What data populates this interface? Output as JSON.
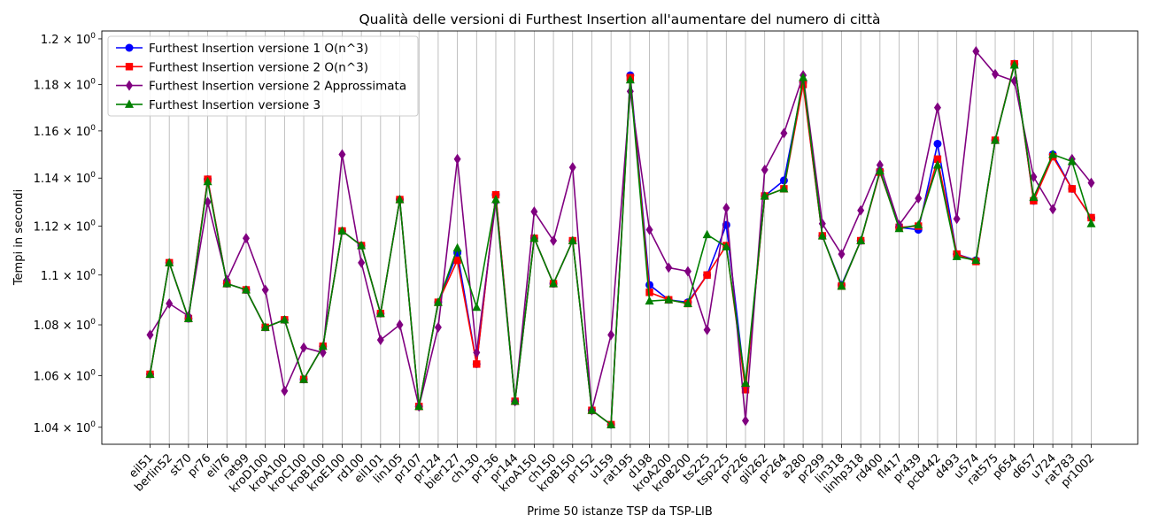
{
  "chart_data": {
    "type": "line",
    "title": "Qualità delle versioni di Furthest Insertion all'aumentare del numero di città",
    "xlabel": "Prime 50 istanze TSP da TSP-LIB",
    "ylabel": "Tempi in secondi",
    "yscale": "log",
    "ylim": [
      1.0335,
      1.2035
    ],
    "yticks": [
      1.04,
      1.06,
      1.08,
      1.1,
      1.12,
      1.14,
      1.16,
      1.18,
      1.2
    ],
    "ytick_labels": [
      "1.04",
      "1.06",
      "1.08",
      "1.1",
      "1.12",
      "1.14",
      "1.16",
      "1.18",
      "1.2"
    ],
    "ytick_mantissa": "× 10",
    "ytick_exponent": "0",
    "grid": "vertical",
    "legend_position": "top-left",
    "categories": [
      "eil51",
      "berlin52",
      "st70",
      "pr76",
      "eil76",
      "rat99",
      "kroD100",
      "kroA100",
      "kroC100",
      "kroB100",
      "kroE100",
      "rd100",
      "eil101",
      "lin105",
      "pr107",
      "pr124",
      "bier127",
      "ch130",
      "pr136",
      "pr144",
      "kroA150",
      "ch150",
      "kroB150",
      "pr152",
      "u159",
      "rat195",
      "d198",
      "kroA200",
      "kroB200",
      "ts225",
      "tsp225",
      "pr226",
      "gil262",
      "pr264",
      "a280",
      "pr299",
      "lin318",
      "linhp318",
      "rd400",
      "fl417",
      "pr439",
      "pcb442",
      "d493",
      "u574",
      "rat575",
      "p654",
      "d657",
      "u724",
      "rat783",
      "pr1002"
    ],
    "series": [
      {
        "name": "Furthest Insertion versione 1 O(n^3)",
        "color": "#0000ff",
        "marker": "circle",
        "values": [
          1.0605,
          1.105,
          1.0825,
          1.1395,
          1.0965,
          1.094,
          1.079,
          1.082,
          1.0585,
          1.0715,
          1.118,
          1.112,
          1.0845,
          1.131,
          1.048,
          1.089,
          1.109,
          1.0645,
          1.133,
          1.05,
          1.115,
          1.0965,
          1.114,
          1.0465,
          1.041,
          1.184,
          1.096,
          1.09,
          1.089,
          1.1,
          1.1205,
          1.0555,
          1.1325,
          1.139,
          1.181,
          1.116,
          1.096,
          1.114,
          1.143,
          1.1195,
          1.1185,
          1.1545,
          1.1085,
          1.106,
          1.156,
          1.189,
          1.1305,
          1.15,
          1.1355,
          1.1235
        ]
      },
      {
        "name": "Furthest Insertion versione 2 O(n^3)",
        "color": "#ff0000",
        "marker": "square",
        "values": [
          1.0605,
          1.105,
          1.0825,
          1.1395,
          1.0965,
          1.094,
          1.079,
          1.082,
          1.0585,
          1.0715,
          1.118,
          1.112,
          1.0845,
          1.131,
          1.048,
          1.089,
          1.106,
          1.0645,
          1.133,
          1.05,
          1.115,
          1.0965,
          1.114,
          1.0465,
          1.041,
          1.183,
          1.093,
          1.09,
          1.0885,
          1.1,
          1.112,
          1.0545,
          1.1325,
          1.1355,
          1.18,
          1.116,
          1.0955,
          1.114,
          1.1425,
          1.1195,
          1.12,
          1.148,
          1.1085,
          1.1055,
          1.156,
          1.189,
          1.1305,
          1.149,
          1.1355,
          1.1235
        ]
      },
      {
        "name": "Furthest Insertion versione 2 Approssimata",
        "color": "#800080",
        "marker": "diamond",
        "values": [
          1.076,
          1.0885,
          1.0835,
          1.13,
          1.098,
          1.115,
          1.094,
          1.054,
          1.071,
          1.069,
          1.15,
          1.105,
          1.074,
          1.08,
          1.048,
          1.079,
          1.148,
          1.069,
          1.13,
          1.05,
          1.126,
          1.114,
          1.1445,
          1.0465,
          1.076,
          1.177,
          1.1185,
          1.103,
          1.1015,
          1.078,
          1.1275,
          1.0425,
          1.1435,
          1.159,
          1.184,
          1.121,
          1.1085,
          1.1265,
          1.1455,
          1.1205,
          1.1315,
          1.17,
          1.123,
          1.1945,
          1.1845,
          1.1815,
          1.1405,
          1.127,
          1.148,
          1.138
        ]
      },
      {
        "name": "Furthest Insertion versione 3",
        "color": "#008000",
        "marker": "triangle",
        "values": [
          1.0605,
          1.105,
          1.0825,
          1.1385,
          1.0965,
          1.094,
          1.079,
          1.082,
          1.0585,
          1.0715,
          1.118,
          1.112,
          1.0845,
          1.131,
          1.048,
          1.089,
          1.111,
          1.087,
          1.131,
          1.05,
          1.115,
          1.0965,
          1.114,
          1.0465,
          1.041,
          1.182,
          1.0895,
          1.09,
          1.0885,
          1.1165,
          1.1115,
          1.057,
          1.1325,
          1.1355,
          1.183,
          1.116,
          1.0955,
          1.114,
          1.143,
          1.119,
          1.1205,
          1.1455,
          1.1075,
          1.106,
          1.156,
          1.1885,
          1.132,
          1.15,
          1.147,
          1.121
        ]
      }
    ]
  }
}
